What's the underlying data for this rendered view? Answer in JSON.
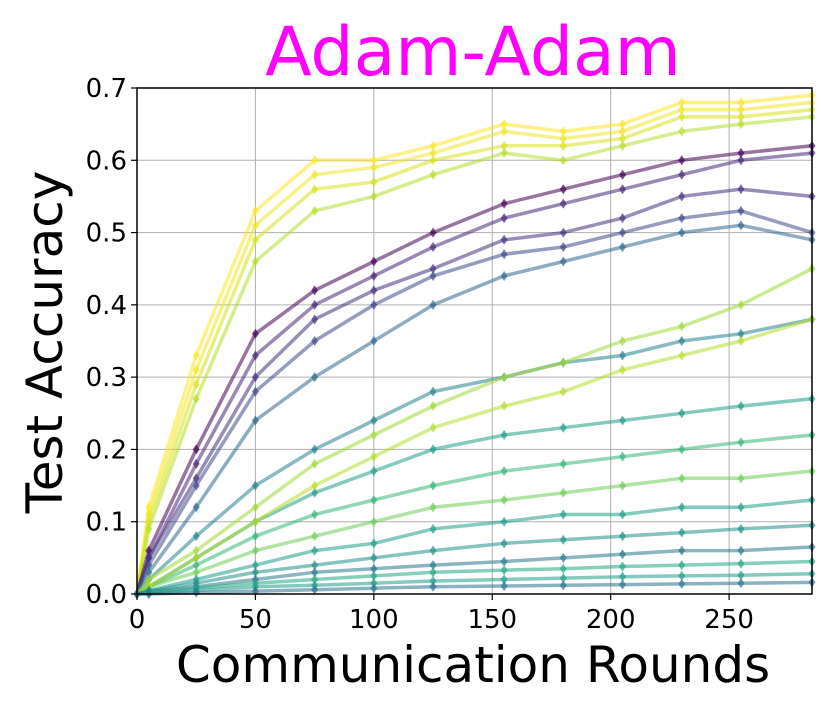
{
  "chart_data": {
    "type": "line",
    "title": "Adam-Adam",
    "title_color": "#ff00ff",
    "xlabel": "Communication Rounds",
    "ylabel": "Test Accuracy",
    "xlim": [
      0,
      285
    ],
    "ylim": [
      0.0,
      0.7
    ],
    "xticks": [
      0,
      50,
      100,
      150,
      200,
      250
    ],
    "xtick_labels": [
      "0",
      "50",
      "100",
      "150",
      "200",
      "250"
    ],
    "yticks": [
      0.0,
      0.1,
      0.2,
      0.3,
      0.4,
      0.5,
      0.6,
      0.7
    ],
    "ytick_labels": [
      "0.0",
      "0.1",
      "0.2",
      "0.3",
      "0.4",
      "0.5",
      "0.6",
      "0.7"
    ],
    "grid": true,
    "colormap": "viridis",
    "marker_style": "diamond",
    "x": [
      0,
      5,
      25,
      50,
      75,
      100,
      125,
      155,
      180,
      205,
      230,
      255,
      285
    ],
    "series": [
      {
        "color": "#fde725",
        "values": [
          0.0,
          0.12,
          0.33,
          0.53,
          0.6,
          0.6,
          0.62,
          0.65,
          0.64,
          0.65,
          0.68,
          0.68,
          0.69
        ]
      },
      {
        "color": "#f0e52a",
        "values": [
          0.0,
          0.11,
          0.31,
          0.51,
          0.58,
          0.59,
          0.61,
          0.64,
          0.63,
          0.64,
          0.67,
          0.67,
          0.68
        ]
      },
      {
        "color": "#d8e219",
        "values": [
          0.0,
          0.1,
          0.29,
          0.49,
          0.56,
          0.57,
          0.6,
          0.62,
          0.62,
          0.63,
          0.66,
          0.66,
          0.67
        ]
      },
      {
        "color": "#b5de2b",
        "values": [
          0.0,
          0.09,
          0.27,
          0.46,
          0.53,
          0.55,
          0.58,
          0.61,
          0.6,
          0.62,
          0.64,
          0.65,
          0.66
        ]
      },
      {
        "color": "#440154",
        "values": [
          0.0,
          0.06,
          0.2,
          0.36,
          0.42,
          0.46,
          0.5,
          0.54,
          0.56,
          0.58,
          0.6,
          0.61,
          0.62
        ]
      },
      {
        "color": "#482878",
        "values": [
          0.0,
          0.05,
          0.18,
          0.33,
          0.4,
          0.44,
          0.48,
          0.52,
          0.54,
          0.56,
          0.58,
          0.6,
          0.61
        ]
      },
      {
        "color": "#46327e",
        "values": [
          0.0,
          0.05,
          0.16,
          0.3,
          0.38,
          0.42,
          0.45,
          0.49,
          0.5,
          0.52,
          0.55,
          0.56,
          0.55
        ]
      },
      {
        "color": "#3e4a89",
        "values": [
          0.0,
          0.04,
          0.15,
          0.28,
          0.35,
          0.4,
          0.44,
          0.47,
          0.48,
          0.5,
          0.52,
          0.53,
          0.5
        ]
      },
      {
        "color": "#31688e",
        "values": [
          0.0,
          0.03,
          0.12,
          0.24,
          0.3,
          0.35,
          0.4,
          0.44,
          0.46,
          0.48,
          0.5,
          0.51,
          0.49
        ]
      },
      {
        "color": "#26828e",
        "values": [
          0.0,
          0.02,
          0.08,
          0.15,
          0.2,
          0.24,
          0.28,
          0.3,
          0.32,
          0.33,
          0.35,
          0.36,
          0.38
        ]
      },
      {
        "color": "#1f9e89",
        "values": [
          0.0,
          0.01,
          0.05,
          0.1,
          0.14,
          0.17,
          0.2,
          0.22,
          0.23,
          0.24,
          0.25,
          0.26,
          0.27
        ]
      },
      {
        "color": "#35b779",
        "values": [
          0.0,
          0.01,
          0.04,
          0.08,
          0.11,
          0.13,
          0.15,
          0.17,
          0.18,
          0.19,
          0.2,
          0.21,
          0.22
        ]
      },
      {
        "color": "#6ece58",
        "values": [
          0.0,
          0.01,
          0.03,
          0.06,
          0.08,
          0.1,
          0.12,
          0.13,
          0.14,
          0.15,
          0.16,
          0.16,
          0.17
        ]
      },
      {
        "color": "#a0da39",
        "values": [
          0.0,
          0.02,
          0.06,
          0.12,
          0.18,
          0.22,
          0.26,
          0.3,
          0.32,
          0.35,
          0.37,
          0.4,
          0.45
        ]
      },
      {
        "color": "#b5de2b",
        "values": [
          0.0,
          0.01,
          0.05,
          0.1,
          0.15,
          0.19,
          0.23,
          0.26,
          0.28,
          0.31,
          0.33,
          0.35,
          0.38
        ]
      },
      {
        "color": "#1f9e89",
        "values": [
          0.0,
          0.005,
          0.02,
          0.04,
          0.06,
          0.07,
          0.09,
          0.1,
          0.11,
          0.11,
          0.12,
          0.12,
          0.13
        ]
      },
      {
        "color": "#21918c",
        "values": [
          0.0,
          0.004,
          0.015,
          0.03,
          0.04,
          0.05,
          0.06,
          0.07,
          0.075,
          0.08,
          0.085,
          0.09,
          0.095
        ]
      },
      {
        "color": "#2a788e",
        "values": [
          0.0,
          0.003,
          0.01,
          0.02,
          0.03,
          0.035,
          0.04,
          0.045,
          0.05,
          0.055,
          0.06,
          0.06,
          0.065
        ]
      },
      {
        "color": "#22a884",
        "values": [
          0.0,
          0.002,
          0.008,
          0.015,
          0.02,
          0.025,
          0.03,
          0.033,
          0.035,
          0.038,
          0.04,
          0.042,
          0.045
        ]
      },
      {
        "color": "#1f9e89",
        "values": [
          0.0,
          0.001,
          0.005,
          0.01,
          0.012,
          0.015,
          0.018,
          0.02,
          0.022,
          0.024,
          0.025,
          0.026,
          0.028
        ]
      },
      {
        "color": "#2c728e",
        "values": [
          0.0,
          0.0,
          0.002,
          0.004,
          0.006,
          0.008,
          0.01,
          0.011,
          0.012,
          0.013,
          0.014,
          0.015,
          0.016
        ]
      }
    ]
  }
}
